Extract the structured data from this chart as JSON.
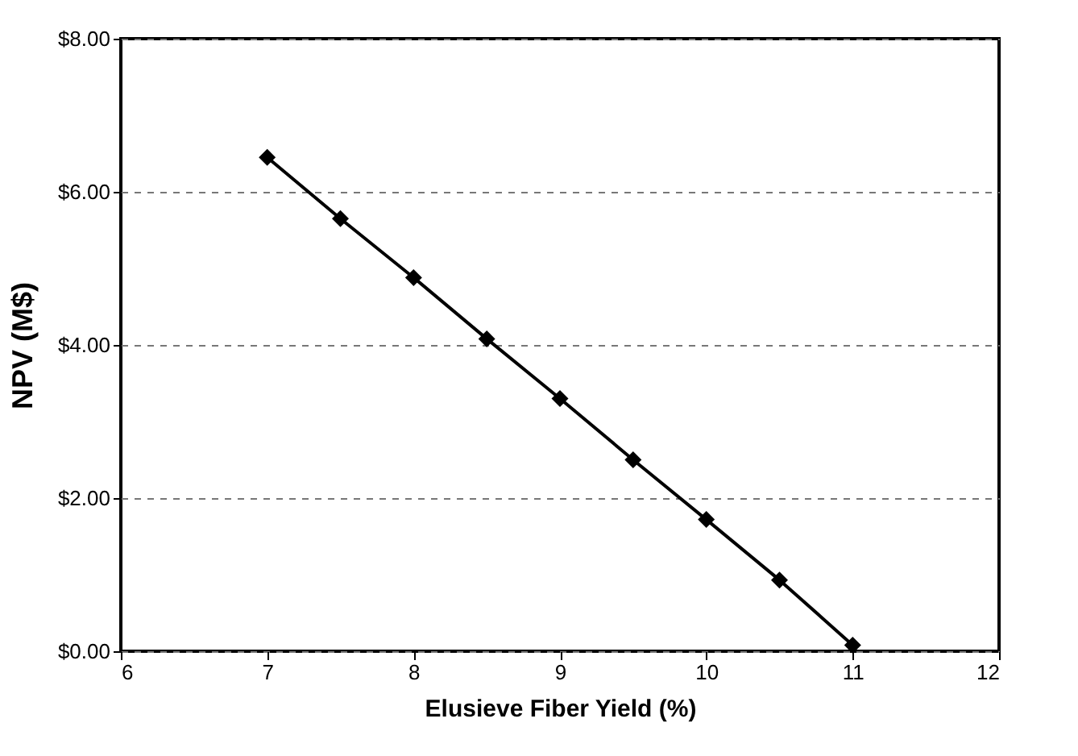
{
  "chart_data": {
    "type": "line",
    "xlabel": "Elusieve Fiber Yield (%)",
    "ylabel": "NPV (M$)",
    "x": [
      7,
      7.5,
      8,
      8.5,
      9,
      9.5,
      10,
      10.5,
      11
    ],
    "series": [
      {
        "color": "#000000",
        "values": [
          6.45,
          5.65,
          4.88,
          4.08,
          3.3,
          2.5,
          1.72,
          0.93,
          0.08
        ]
      }
    ],
    "xlim": [
      6,
      12
    ],
    "xticks": [
      6,
      7,
      8,
      9,
      10,
      11,
      12
    ],
    "ylim": [
      0,
      8
    ],
    "yticks": [
      {
        "value": 0,
        "label": "$0.00"
      },
      {
        "value": 2,
        "label": "$2.00"
      },
      {
        "value": 4,
        "label": "$4.00"
      },
      {
        "value": 6,
        "label": "$6.00"
      },
      {
        "value": 8,
        "label": "$8.00"
      }
    ],
    "grid": "y",
    "marker": "diamond",
    "line_style": "solid"
  }
}
